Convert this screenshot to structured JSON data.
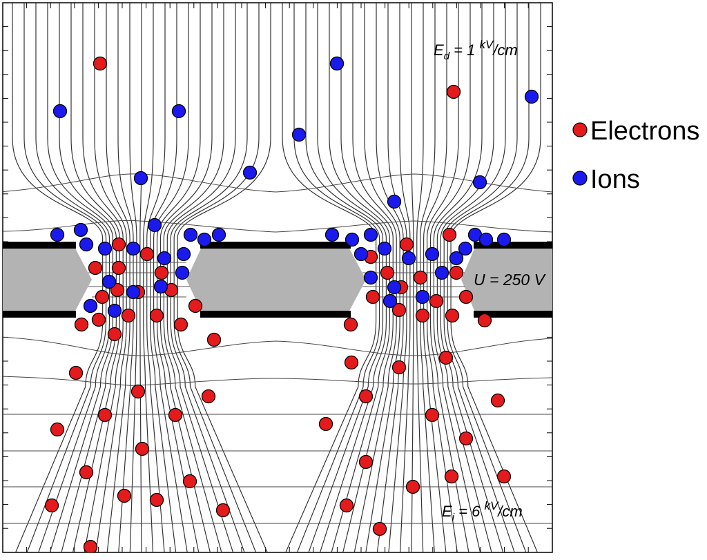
{
  "labels": {
    "ed_main": "E",
    "ed_sub": "d",
    "ed_value": " = 1 ",
    "ed_unit_num": "kV",
    "ed_unit_den": "/cm",
    "ei_main": "E",
    "ei_sub": "i",
    "ei_value": " = 6 ",
    "ei_unit_num": "kV",
    "ei_unit_den": "/cm",
    "voltage": "U = 250 V"
  },
  "legend": {
    "electrons": "Electrons",
    "ions": "Ions"
  },
  "colors": {
    "electron": "#e41a1c",
    "ion": "#1a1aee",
    "foil": "#b3b3b3",
    "electrode": "#000000"
  }
}
